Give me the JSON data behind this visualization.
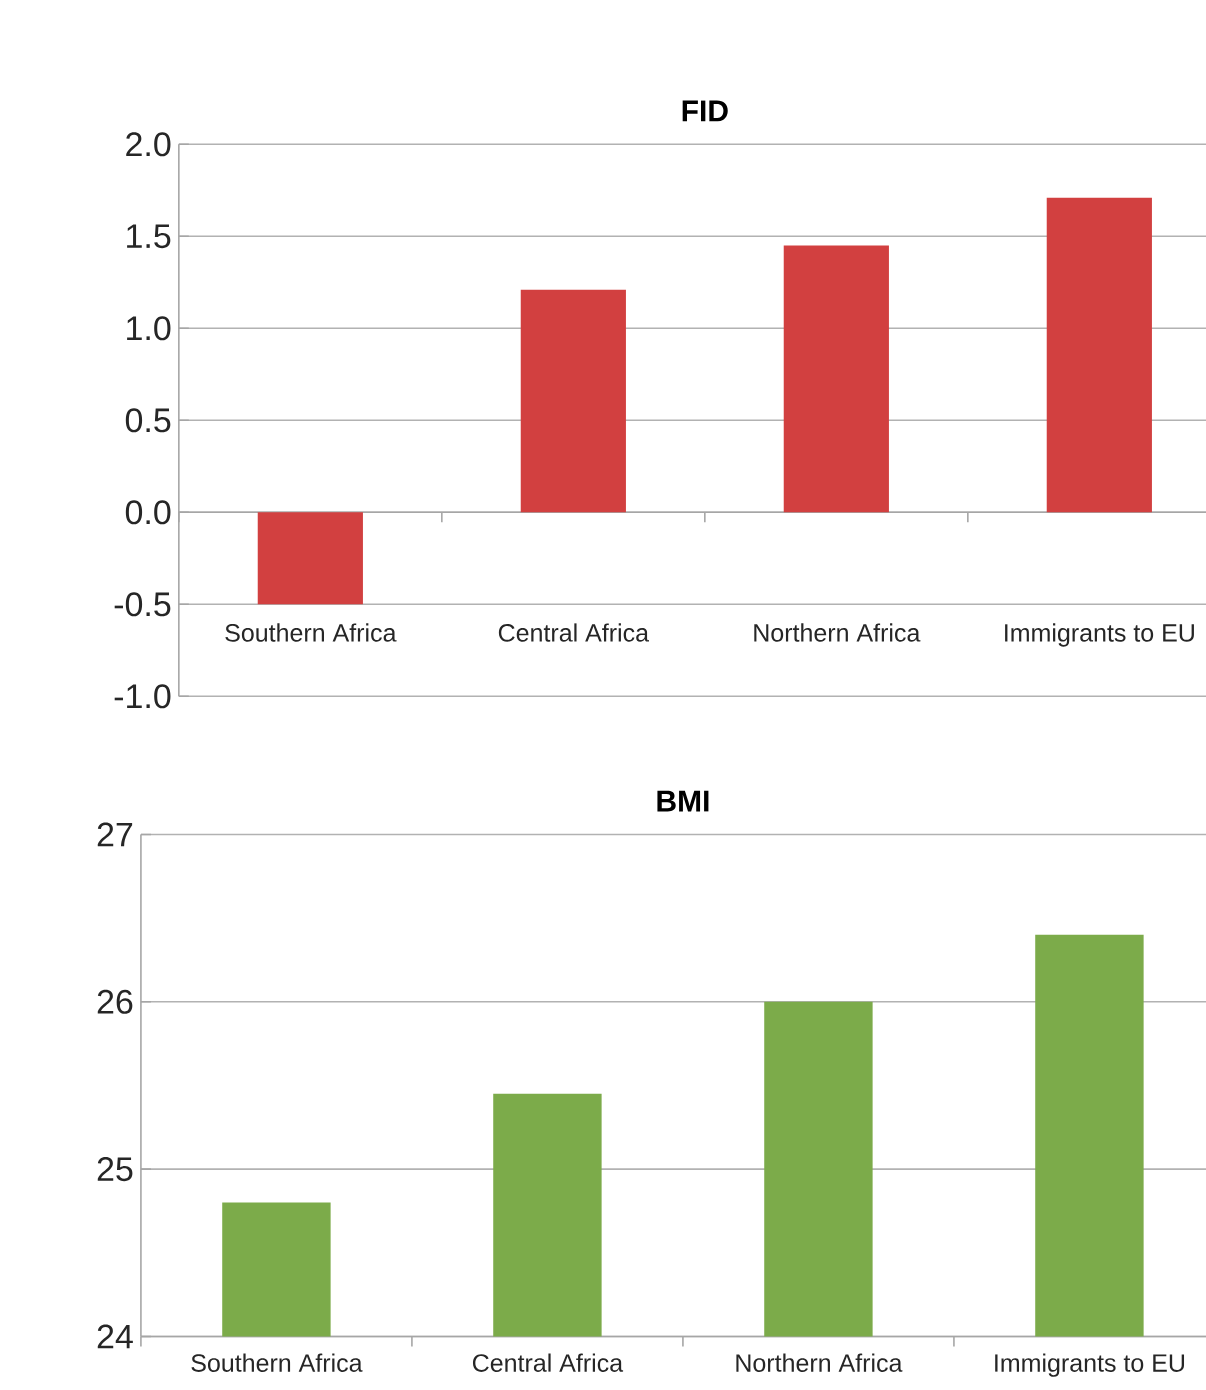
{
  "chart_data": [
    {
      "type": "bar",
      "title": "FID",
      "categories": [
        "Southern Africa",
        "Central Africa",
        "Northern Africa",
        "Immigrants to EU"
      ],
      "values": [
        -0.5,
        1.21,
        1.45,
        1.71
      ],
      "color": "#d24040",
      "ylim": [
        -1.0,
        2.0
      ],
      "yticks": [
        {
          "value": -1,
          "label": "-1.0"
        },
        {
          "value": -0.5,
          "label": "-0.5"
        },
        {
          "value": 0,
          "label": "0.0"
        },
        {
          "value": 0.5,
          "label": "0.5"
        },
        {
          "value": 1,
          "label": "1.0"
        },
        {
          "value": 1.5,
          "label": "1.5"
        },
        {
          "value": 2,
          "label": "2.0"
        }
      ],
      "grid": "y"
    },
    {
      "type": "bar",
      "title": "BMI",
      "categories": [
        "Southern Africa",
        "Central Africa",
        "Northern Africa",
        "Immigrants to EU"
      ],
      "values": [
        24.8,
        25.45,
        26.0,
        26.4
      ],
      "color": "#7cab4a",
      "ylim": [
        24,
        27
      ],
      "yticks": [
        24,
        25,
        26,
        27
      ],
      "grid": "y"
    }
  ]
}
